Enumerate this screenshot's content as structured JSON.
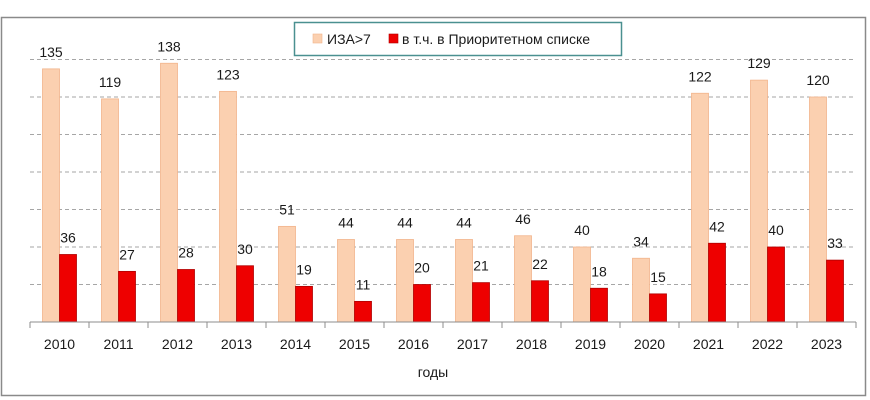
{
  "chart_data": {
    "type": "bar",
    "categories": [
      "2010",
      "2011",
      "2012",
      "2013",
      "2014",
      "2015",
      "2016",
      "2017",
      "2018",
      "2019",
      "2020",
      "2021",
      "2022",
      "2023"
    ],
    "series": [
      {
        "name": "ИЗА>7",
        "values": [
          135,
          119,
          138,
          123,
          51,
          44,
          44,
          44,
          46,
          40,
          34,
          122,
          129,
          120
        ],
        "color": "#FBD0B0",
        "stroke": "#F2B48C"
      },
      {
        "name": "в т.ч. в Приоритетном списке",
        "values": [
          36,
          27,
          28,
          30,
          19,
          11,
          20,
          21,
          22,
          18,
          15,
          42,
          40,
          33
        ],
        "color": "#EE0000",
        "stroke": "#B00000"
      }
    ],
    "xlabel": "годы",
    "ylim": [
      0,
      160
    ],
    "ytick_step": 20,
    "grid": true,
    "legend": "top-center"
  },
  "colors": {
    "frame": "#8a8a8a",
    "legend_border": "#4a9090",
    "grid": "#a6a6a6",
    "axis": "#8c8c8c"
  }
}
